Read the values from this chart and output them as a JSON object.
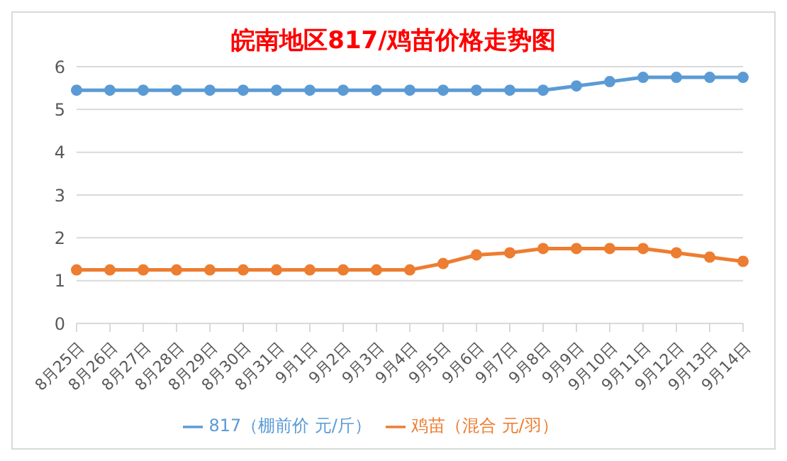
{
  "chart_data": {
    "type": "line",
    "title": "皖南地区817/鸡苗价格走势图",
    "categories": [
      "8月25日",
      "8月26日",
      "8月27日",
      "8月28日",
      "8月29日",
      "8月30日",
      "8月31日",
      "9月1日",
      "9月2日",
      "9月3日",
      "9月4日",
      "9月5日",
      "9月6日",
      "9月7日",
      "9月8日",
      "9月9日",
      "9月10日",
      "9月11日",
      "9月12日",
      "9月13日",
      "9月14日"
    ],
    "series": [
      {
        "name": "817（棚前价 元/斤）",
        "color": "#5b9bd5",
        "values": [
          5.45,
          5.45,
          5.45,
          5.45,
          5.45,
          5.45,
          5.45,
          5.45,
          5.45,
          5.45,
          5.45,
          5.45,
          5.45,
          5.45,
          5.45,
          5.55,
          5.65,
          5.75,
          5.75,
          5.75,
          5.75
        ]
      },
      {
        "name": "鸡苗（混合 元/羽）",
        "color": "#ed7d31",
        "values": [
          1.25,
          1.25,
          1.25,
          1.25,
          1.25,
          1.25,
          1.25,
          1.25,
          1.25,
          1.25,
          1.25,
          1.4,
          1.6,
          1.65,
          1.75,
          1.75,
          1.75,
          1.75,
          1.65,
          1.55,
          1.45
        ]
      }
    ],
    "ylim": [
      0,
      6
    ],
    "yticks": [
      0,
      1,
      2,
      3,
      4,
      5,
      6
    ],
    "grid": "y",
    "legend": "bottom",
    "marker": "circle",
    "line_style": "solid"
  }
}
